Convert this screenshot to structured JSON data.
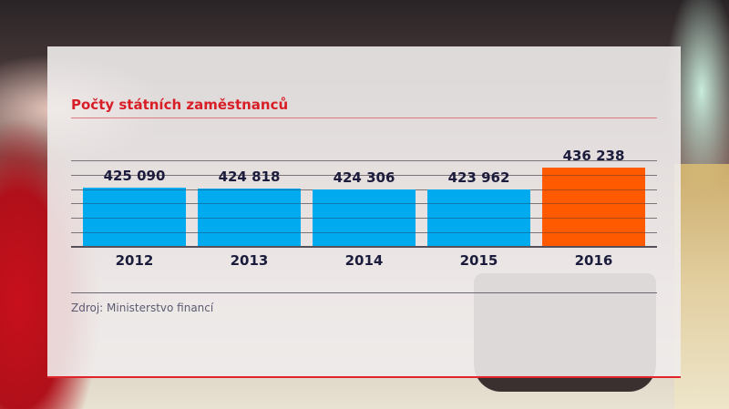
{
  "chart_data": {
    "type": "bar",
    "title": "Počty státních zaměstnanců",
    "categories": [
      "2012",
      "2013",
      "2014",
      "2015",
      "2016"
    ],
    "values": [
      425090,
      424818,
      424306,
      423962,
      436238
    ],
    "value_labels": [
      "425 090",
      "424 818",
      "424 306",
      "423 962",
      "436 238"
    ],
    "colors": [
      "#00aaee",
      "#00aaee",
      "#00aaee",
      "#00aaee",
      "#ff5a00"
    ],
    "xlabel": "",
    "ylabel": "",
    "grid": true,
    "legend": null,
    "source": "Zdroj: Ministerstvo financí"
  },
  "colors": {
    "title": "#d81e27",
    "bar_default": "#00aaee",
    "bar_highlight": "#ff5a00",
    "accent_line": "#e0242c"
  },
  "header": {
    "title": "Počty státních zaměstnanců"
  },
  "footer": {
    "source": "Zdroj: Ministerstvo financí"
  }
}
